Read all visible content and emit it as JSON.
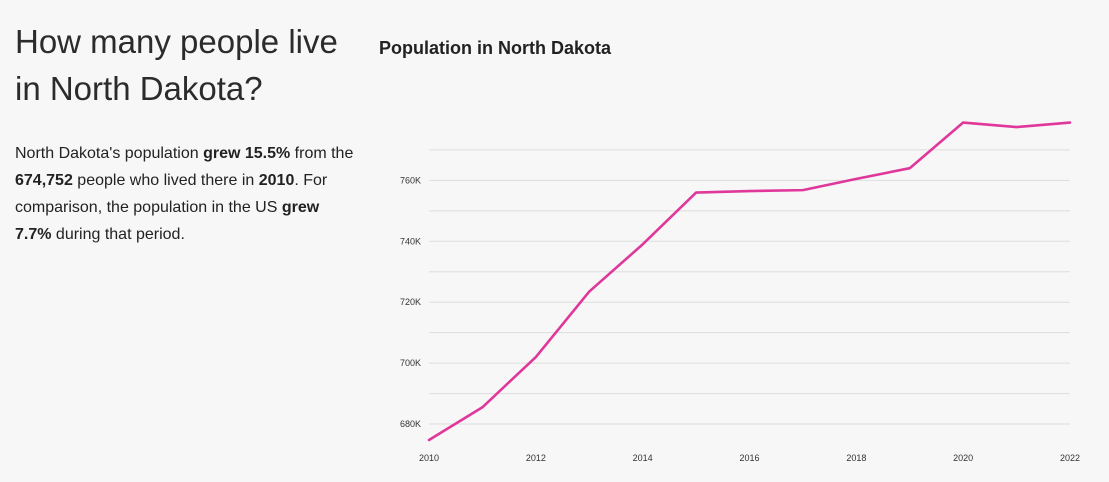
{
  "story": {
    "headline": "How many people live in North Dakota?",
    "summary": {
      "t1": "North Dakota's population ",
      "b1": "grew 15.5%",
      "t2": " from the ",
      "b2": "674,752",
      "t3": " people who lived there in ",
      "b3": "2010",
      "t4": ". For comparison, the population in the US ",
      "b4": "grew 7.7%",
      "t5": " during that period."
    }
  },
  "chart_data": {
    "type": "line",
    "title": "Population in North Dakota",
    "xlabel": "",
    "ylabel": "",
    "x": [
      2010,
      2011,
      2012,
      2013,
      2014,
      2015,
      2016,
      2017,
      2018,
      2019,
      2020,
      2021,
      2022
    ],
    "series": [
      {
        "values": [
          674752,
          685500,
          702000,
          723500,
          739000,
          756000,
          756500,
          756800,
          760500,
          764000,
          779000,
          777500,
          779000
        ]
      }
    ],
    "xticks": [
      2010,
      2012,
      2014,
      2016,
      2018,
      2020,
      2022
    ],
    "xtick_labels": [
      "2010",
      "2012",
      "2014",
      "2016",
      "2018",
      "2020",
      "2022"
    ],
    "yticks": [
      680000,
      700000,
      720000,
      740000,
      760000
    ],
    "ytick_labels": [
      "680K",
      "700K",
      "720K",
      "740K",
      "760K"
    ],
    "gridlines_every": 10000,
    "ylim": [
      674752,
      779500
    ],
    "xlim": [
      2010,
      2022
    ],
    "grid": true,
    "legend": "none",
    "line_color": "#e0379a",
    "grid_color": "#dddddd"
  }
}
